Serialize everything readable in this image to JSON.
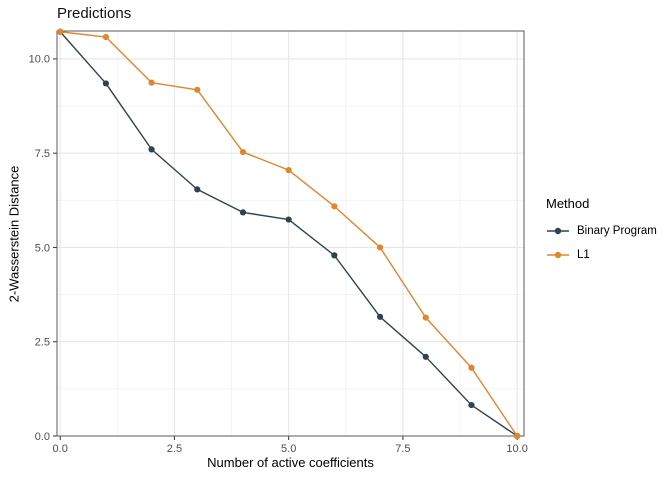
{
  "title": "Predictions",
  "axes": {
    "x": {
      "label": "Number of active coefficients",
      "tick_labels": [
        "0.0",
        "2.5",
        "5.0",
        "7.5",
        "10.0"
      ],
      "tick_values": [
        0,
        2.5,
        5,
        7.5,
        10
      ]
    },
    "y": {
      "label": "2-Wasserstein Distance",
      "tick_labels": [
        "0.0",
        "2.5",
        "5.0",
        "7.5",
        "10.0"
      ],
      "tick_values": [
        0,
        2.5,
        5,
        7.5,
        10
      ]
    }
  },
  "legend": {
    "title": "Method",
    "entries": [
      {
        "label": "Binary Program",
        "color": "#2d4350"
      },
      {
        "label": "L1",
        "color": "#e0862f"
      }
    ]
  },
  "style_colors": {
    "grid_major": "#e7e7e7",
    "grid_minor": "#f1f1f1",
    "panel_border": "#595959",
    "tick_mark": "#333333",
    "tick_label": "#4d4d4d"
  },
  "chart_data": {
    "type": "line",
    "title": "Predictions",
    "xlabel": "Number of active coefficients",
    "ylabel": "2-Wasserstein Distance",
    "x": [
      0,
      1,
      2,
      3,
      4,
      5,
      6,
      7,
      8,
      9,
      10
    ],
    "series": [
      {
        "name": "Binary Program",
        "color": "#2d4350",
        "values": [
          10.72,
          9.35,
          7.6,
          6.54,
          5.93,
          5.74,
          4.79,
          3.16,
          2.1,
          0.82,
          0.0
        ]
      },
      {
        "name": "L1",
        "color": "#e0862f",
        "values": [
          10.72,
          10.58,
          9.37,
          9.18,
          7.53,
          7.05,
          6.09,
          5.0,
          3.14,
          1.81,
          0.0
        ]
      }
    ],
    "xlim": [
      -0.07,
      10.15
    ],
    "ylim": [
      0,
      10.74
    ],
    "grid": true,
    "legend_position": "right",
    "legend_title": "Method"
  }
}
